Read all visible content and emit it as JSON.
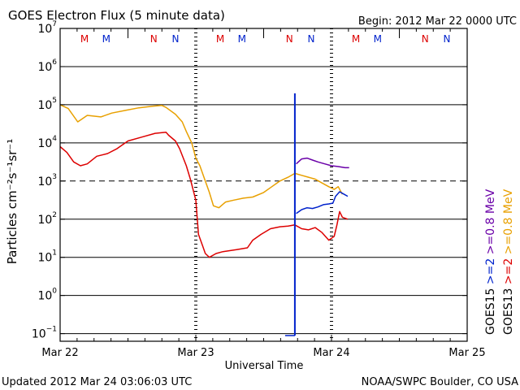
{
  "header": {
    "title": "GOES Electron Flux (5 minute data)",
    "begin": "Begin: 2012 Mar 22 0000 UTC"
  },
  "footer": {
    "updated": "Updated 2012 Mar 24 03:06:03 UTC",
    "source": "NOAA/SWPC Boulder, CO USA"
  },
  "colors": {
    "goes13_08": "#e8a000",
    "goes13_2": "#dd0000",
    "goes15_08": "#6a00a8",
    "goes15_2": "#0022cc",
    "marker": "#0022cc"
  },
  "chart_data": {
    "type": "line",
    "title": "GOES Electron Flux (5 minute data)",
    "xlabel": "Universal Time",
    "ylabel": "Particles cm⁻²s⁻¹sr⁻¹",
    "x_unit": "days since 2012 Mar 22 0000 UTC",
    "xlim": [
      0,
      3
    ],
    "ylim_log10": [
      -1.2,
      7
    ],
    "x_ticks": [
      {
        "x": 0,
        "label": "Mar 22"
      },
      {
        "x": 1,
        "label": "Mar 23"
      },
      {
        "x": 2,
        "label": "Mar 24"
      },
      {
        "x": 3,
        "label": "Mar 25"
      }
    ],
    "y_ticks": [
      {
        "base": "10",
        "exp": "7",
        "value": 7
      },
      {
        "base": "10",
        "exp": "6",
        "value": 6
      },
      {
        "base": "10",
        "exp": "5",
        "value": 5
      },
      {
        "base": "10",
        "exp": "4",
        "value": 4
      },
      {
        "base": "10",
        "exp": "3",
        "value": 3
      },
      {
        "base": "10",
        "exp": "2",
        "value": 2
      },
      {
        "base": "10",
        "exp": "1",
        "value": 1
      },
      {
        "base": "10",
        "exp": "0",
        "value": 0
      },
      {
        "base": "10",
        "exp": "−1",
        "value": -1
      }
    ],
    "threshold_log10": 3,
    "noon_marks": [
      0.5,
      1.5,
      2.5
    ],
    "day_marks": [
      1,
      2
    ],
    "event_line_x": 1.73,
    "event_line_top_log10": 5.3,
    "top_labels": [
      {
        "text": "M",
        "x": 0.18,
        "color": "#dd0000"
      },
      {
        "text": "M",
        "x": 0.34,
        "color": "#0022cc"
      },
      {
        "text": "N",
        "x": 0.69,
        "color": "#dd0000"
      },
      {
        "text": "N",
        "x": 0.85,
        "color": "#0022cc"
      },
      {
        "text": "M",
        "x": 1.18,
        "color": "#dd0000"
      },
      {
        "text": "M",
        "x": 1.34,
        "color": "#0022cc"
      },
      {
        "text": "N",
        "x": 1.69,
        "color": "#dd0000"
      },
      {
        "text": "N",
        "x": 1.85,
        "color": "#0022cc"
      },
      {
        "text": "M",
        "x": 2.18,
        "color": "#dd0000"
      },
      {
        "text": "M",
        "x": 2.34,
        "color": "#0022cc"
      },
      {
        "text": "N",
        "x": 2.69,
        "color": "#dd0000"
      },
      {
        "text": "N",
        "x": 2.85,
        "color": "#0022cc"
      }
    ],
    "legend": [
      {
        "text": "GOES13",
        "color": "#000000"
      },
      {
        "text": ">=2",
        "color": "#dd0000"
      },
      {
        "text": ">=0.8  MeV",
        "color": "#e8a000"
      },
      {
        "text": "GOES15",
        "color": "#000000"
      },
      {
        "text": ">=2",
        "color": "#0022cc"
      },
      {
        "text": ">=0.8  MeV",
        "color": "#6a00a8"
      }
    ],
    "series": [
      {
        "name": "GOES13 >=0.8 MeV",
        "color": "#e8a000",
        "points": [
          [
            0,
            5.0
          ],
          [
            0.06,
            4.9
          ],
          [
            0.13,
            4.55
          ],
          [
            0.2,
            4.72
          ],
          [
            0.3,
            4.68
          ],
          [
            0.38,
            4.78
          ],
          [
            0.48,
            4.85
          ],
          [
            0.58,
            4.92
          ],
          [
            0.68,
            4.96
          ],
          [
            0.75,
            4.98
          ],
          [
            0.78,
            4.93
          ],
          [
            0.85,
            4.75
          ],
          [
            0.9,
            4.55
          ],
          [
            0.93,
            4.3
          ],
          [
            0.97,
            4.0
          ],
          [
            1.0,
            3.6
          ],
          [
            1.03,
            3.4
          ],
          [
            1.06,
            3.1
          ],
          [
            1.1,
            2.7
          ],
          [
            1.13,
            2.35
          ],
          [
            1.17,
            2.3
          ],
          [
            1.22,
            2.45
          ],
          [
            1.28,
            2.5
          ],
          [
            1.35,
            2.55
          ],
          [
            1.42,
            2.58
          ],
          [
            1.5,
            2.7
          ],
          [
            1.56,
            2.85
          ],
          [
            1.62,
            3.0
          ],
          [
            1.68,
            3.1
          ],
          [
            1.73,
            3.2
          ],
          [
            1.78,
            3.15
          ],
          [
            1.83,
            3.1
          ],
          [
            1.88,
            3.05
          ],
          [
            1.93,
            2.95
          ],
          [
            1.98,
            2.85
          ],
          [
            2.02,
            2.78
          ],
          [
            2.05,
            2.85
          ],
          [
            2.08,
            2.65
          ]
        ]
      },
      {
        "name": "GOES13 >=2 MeV",
        "color": "#dd0000",
        "points": [
          [
            0,
            3.9
          ],
          [
            0.05,
            3.75
          ],
          [
            0.1,
            3.5
          ],
          [
            0.15,
            3.4
          ],
          [
            0.2,
            3.45
          ],
          [
            0.27,
            3.65
          ],
          [
            0.35,
            3.72
          ],
          [
            0.42,
            3.85
          ],
          [
            0.5,
            4.05
          ],
          [
            0.6,
            4.15
          ],
          [
            0.7,
            4.25
          ],
          [
            0.78,
            4.28
          ],
          [
            0.8,
            4.2
          ],
          [
            0.85,
            4.05
          ],
          [
            0.88,
            3.85
          ],
          [
            0.93,
            3.4
          ],
          [
            0.96,
            3.05
          ],
          [
            1.0,
            2.5
          ],
          [
            1.02,
            1.6
          ],
          [
            1.05,
            1.3
          ],
          [
            1.07,
            1.1
          ],
          [
            1.1,
            1.0
          ],
          [
            1.15,
            1.1
          ],
          [
            1.2,
            1.15
          ],
          [
            1.3,
            1.2
          ],
          [
            1.38,
            1.25
          ],
          [
            1.42,
            1.45
          ],
          [
            1.48,
            1.6
          ],
          [
            1.55,
            1.75
          ],
          [
            1.62,
            1.8
          ],
          [
            1.68,
            1.82
          ],
          [
            1.73,
            1.85
          ],
          [
            1.78,
            1.75
          ],
          [
            1.83,
            1.72
          ],
          [
            1.88,
            1.78
          ],
          [
            1.93,
            1.65
          ],
          [
            1.98,
            1.45
          ],
          [
            2.02,
            1.55
          ],
          [
            2.04,
            1.85
          ],
          [
            2.06,
            2.2
          ],
          [
            2.08,
            2.05
          ],
          [
            2.12,
            2.0
          ]
        ]
      },
      {
        "name": "GOES15 >=0.8 MeV",
        "color": "#6a00a8",
        "points": [
          [
            1.74,
            3.45
          ],
          [
            1.78,
            3.58
          ],
          [
            1.82,
            3.6
          ],
          [
            1.86,
            3.55
          ],
          [
            1.9,
            3.5
          ],
          [
            1.95,
            3.45
          ],
          [
            2.0,
            3.4
          ],
          [
            2.05,
            3.38
          ],
          [
            2.1,
            3.35
          ],
          [
            2.13,
            3.35
          ]
        ]
      },
      {
        "name": "GOES15 >=2 MeV",
        "color": "#0022cc",
        "points": [
          [
            1.74,
            2.15
          ],
          [
            1.78,
            2.25
          ],
          [
            1.82,
            2.3
          ],
          [
            1.86,
            2.28
          ],
          [
            1.9,
            2.32
          ],
          [
            1.94,
            2.38
          ],
          [
            1.98,
            2.4
          ],
          [
            2.01,
            2.42
          ],
          [
            2.03,
            2.6
          ],
          [
            2.06,
            2.72
          ],
          [
            2.09,
            2.66
          ],
          [
            2.12,
            2.6
          ]
        ]
      }
    ],
    "xlabel_text": "Universal Time"
  }
}
